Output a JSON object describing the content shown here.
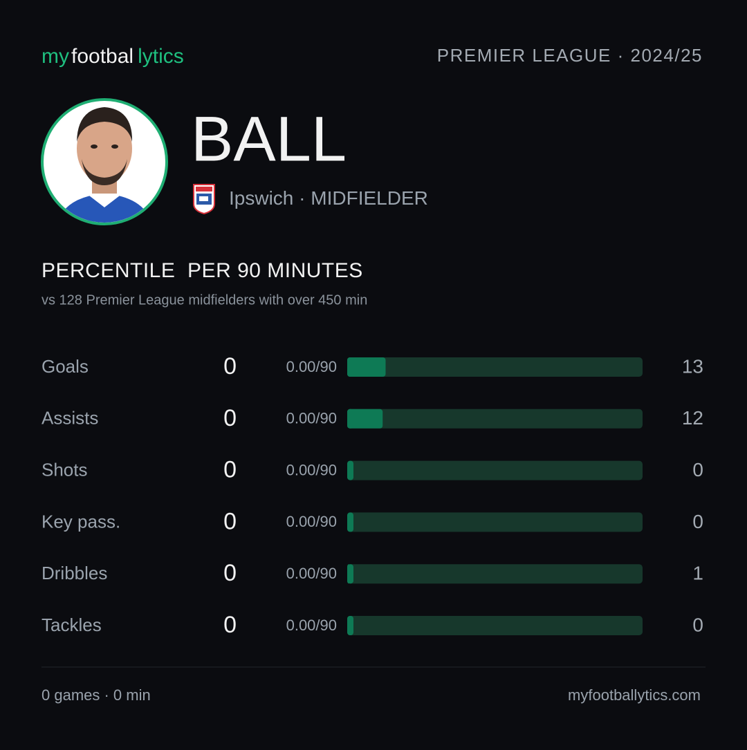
{
  "header": {
    "brand_parts": [
      "my",
      "footbal",
      "lytics"
    ],
    "competition": "PREMIER LEAGUE · 2024/25"
  },
  "player": {
    "name": "BALL",
    "club": "Ipswich",
    "position": "MIDFIELDER"
  },
  "section": {
    "title": "PERCENTILE  PER 90 MINUTES",
    "subtitle": "vs 128 Premier League midfielders with over 450 min"
  },
  "chart_data": {
    "type": "bar",
    "orientation": "horizontal",
    "categories": [
      "Goals",
      "Assists",
      "Shots",
      "Key pass.",
      "Dribbles",
      "Tackles"
    ],
    "totals": [
      0,
      0,
      0,
      0,
      0,
      0
    ],
    "per90": [
      "0.00/90",
      "0.00/90",
      "0.00/90",
      "0.00/90",
      "0.00/90",
      "0.00/90"
    ],
    "values": [
      13,
      12,
      0,
      0,
      1,
      0
    ],
    "xlim": [
      0,
      100
    ],
    "color": "#0e7a55",
    "track_color": "#17382c"
  },
  "footer": {
    "summary": "0 games · 0 min",
    "site": "myfootballytics.com"
  }
}
